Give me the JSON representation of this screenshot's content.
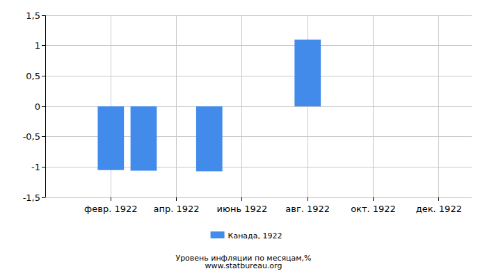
{
  "chart_data": {
    "type": "bar",
    "title": "Уровень инфляции по месяцам,%",
    "subtitle": "www.statbureau.org",
    "categories": [
      null,
      "февр. 1922",
      null,
      "апр. 1922",
      null,
      "июнь 1922",
      null,
      "авг. 1922",
      null,
      "окт. 1922",
      null,
      "дек. 1922"
    ],
    "series": [
      {
        "name": "Канада, 1922",
        "color": "#428bea",
        "values": [
          0,
          -1.05,
          -1.06,
          0,
          -1.07,
          0,
          0,
          1.1,
          0,
          0,
          0,
          0
        ]
      }
    ],
    "ylim": [
      -1.5,
      1.5
    ],
    "yticks": [
      {
        "value": -1.5,
        "label": "-1,5"
      },
      -1,
      {
        "value": -0.5,
        "label": "-0,5"
      },
      0,
      {
        "value": 0.5,
        "label": "0,5"
      },
      1,
      {
        "value": 1.5,
        "label": "1,5"
      }
    ],
    "grid": true,
    "legend": "bottom"
  }
}
